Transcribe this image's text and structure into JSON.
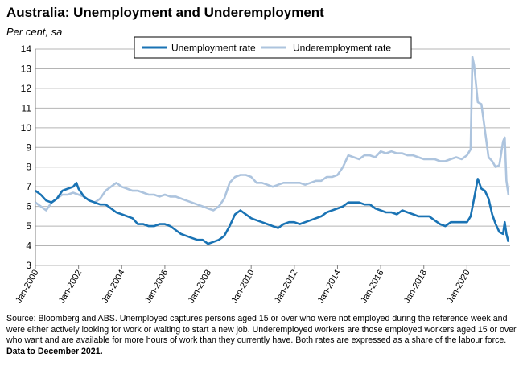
{
  "chart_data": {
    "type": "line",
    "title": "Australia: Unemployment and Underemployment",
    "subtitle": "Per cent, sa",
    "ylim": [
      3,
      14
    ],
    "yticks": [
      "3",
      "4",
      "5",
      "6",
      "7",
      "8",
      "9",
      "10",
      "11",
      "12",
      "13",
      "14"
    ],
    "xlim": [
      2000.0,
      2022.0
    ],
    "xticks": [
      {
        "label": "Jan-2000",
        "x": 2000
      },
      {
        "label": "Jan-2002",
        "x": 2002
      },
      {
        "label": "Jan-2004",
        "x": 2004
      },
      {
        "label": "Jan-2006",
        "x": 2006
      },
      {
        "label": "Jan-2008",
        "x": 2008
      },
      {
        "label": "Jan-2010",
        "x": 2010
      },
      {
        "label": "Jan-2012",
        "x": 2012
      },
      {
        "label": "Jan-2014",
        "x": 2014
      },
      {
        "label": "Jan-2016",
        "x": 2016
      },
      {
        "label": "Jan-2018",
        "x": 2018
      },
      {
        "label": "Jan-2020",
        "x": 2020
      }
    ],
    "grid": true,
    "legend_position": "top-center",
    "series": [
      {
        "name": "Unemployment rate",
        "color": "#1a73b4",
        "points": [
          [
            2000.0,
            6.8
          ],
          [
            2000.25,
            6.6
          ],
          [
            2000.5,
            6.3
          ],
          [
            2000.75,
            6.2
          ],
          [
            2001.0,
            6.4
          ],
          [
            2001.25,
            6.8
          ],
          [
            2001.5,
            6.9
          ],
          [
            2001.75,
            7.0
          ],
          [
            2001.9,
            7.2
          ],
          [
            2002.0,
            6.9
          ],
          [
            2002.25,
            6.5
          ],
          [
            2002.5,
            6.3
          ],
          [
            2002.75,
            6.2
          ],
          [
            2003.0,
            6.1
          ],
          [
            2003.25,
            6.1
          ],
          [
            2003.5,
            5.9
          ],
          [
            2003.75,
            5.7
          ],
          [
            2004.0,
            5.6
          ],
          [
            2004.25,
            5.5
          ],
          [
            2004.5,
            5.4
          ],
          [
            2004.75,
            5.1
          ],
          [
            2005.0,
            5.1
          ],
          [
            2005.25,
            5.0
          ],
          [
            2005.5,
            5.0
          ],
          [
            2005.75,
            5.1
          ],
          [
            2006.0,
            5.1
          ],
          [
            2006.25,
            5.0
          ],
          [
            2006.5,
            4.8
          ],
          [
            2006.75,
            4.6
          ],
          [
            2007.0,
            4.5
          ],
          [
            2007.25,
            4.4
          ],
          [
            2007.5,
            4.3
          ],
          [
            2007.75,
            4.3
          ],
          [
            2008.0,
            4.1
          ],
          [
            2008.25,
            4.2
          ],
          [
            2008.5,
            4.3
          ],
          [
            2008.75,
            4.5
          ],
          [
            2009.0,
            5.0
          ],
          [
            2009.25,
            5.6
          ],
          [
            2009.5,
            5.8
          ],
          [
            2009.75,
            5.6
          ],
          [
            2010.0,
            5.4
          ],
          [
            2010.25,
            5.3
          ],
          [
            2010.5,
            5.2
          ],
          [
            2010.75,
            5.1
          ],
          [
            2011.0,
            5.0
          ],
          [
            2011.25,
            4.9
          ],
          [
            2011.5,
            5.1
          ],
          [
            2011.75,
            5.2
          ],
          [
            2012.0,
            5.2
          ],
          [
            2012.25,
            5.1
          ],
          [
            2012.5,
            5.2
          ],
          [
            2012.75,
            5.3
          ],
          [
            2013.0,
            5.4
          ],
          [
            2013.25,
            5.5
          ],
          [
            2013.5,
            5.7
          ],
          [
            2013.75,
            5.8
          ],
          [
            2014.0,
            5.9
          ],
          [
            2014.25,
            6.0
          ],
          [
            2014.5,
            6.2
          ],
          [
            2014.75,
            6.2
          ],
          [
            2015.0,
            6.2
          ],
          [
            2015.25,
            6.1
          ],
          [
            2015.5,
            6.1
          ],
          [
            2015.75,
            5.9
          ],
          [
            2016.0,
            5.8
          ],
          [
            2016.25,
            5.7
          ],
          [
            2016.5,
            5.7
          ],
          [
            2016.75,
            5.6
          ],
          [
            2017.0,
            5.8
          ],
          [
            2017.25,
            5.7
          ],
          [
            2017.5,
            5.6
          ],
          [
            2017.75,
            5.5
          ],
          [
            2018.0,
            5.5
          ],
          [
            2018.25,
            5.5
          ],
          [
            2018.5,
            5.3
          ],
          [
            2018.75,
            5.1
          ],
          [
            2019.0,
            5.0
          ],
          [
            2019.25,
            5.2
          ],
          [
            2019.5,
            5.2
          ],
          [
            2019.75,
            5.2
          ],
          [
            2020.0,
            5.2
          ],
          [
            2020.17,
            5.5
          ],
          [
            2020.33,
            6.4
          ],
          [
            2020.5,
            7.4
          ],
          [
            2020.67,
            6.9
          ],
          [
            2020.83,
            6.8
          ],
          [
            2021.0,
            6.4
          ],
          [
            2021.17,
            5.6
          ],
          [
            2021.33,
            5.1
          ],
          [
            2021.5,
            4.7
          ],
          [
            2021.67,
            4.6
          ],
          [
            2021.75,
            5.2
          ],
          [
            2021.83,
            4.6
          ],
          [
            2021.92,
            4.2
          ]
        ]
      },
      {
        "name": "Underemployment rate",
        "color": "#adc4de",
        "points": [
          [
            2000.0,
            6.2
          ],
          [
            2000.25,
            6.0
          ],
          [
            2000.5,
            5.8
          ],
          [
            2000.75,
            6.2
          ],
          [
            2001.0,
            6.4
          ],
          [
            2001.25,
            6.6
          ],
          [
            2001.5,
            6.6
          ],
          [
            2001.75,
            6.7
          ],
          [
            2002.0,
            6.6
          ],
          [
            2002.25,
            6.5
          ],
          [
            2002.5,
            6.3
          ],
          [
            2002.75,
            6.2
          ],
          [
            2003.0,
            6.4
          ],
          [
            2003.25,
            6.8
          ],
          [
            2003.5,
            7.0
          ],
          [
            2003.75,
            7.2
          ],
          [
            2004.0,
            7.0
          ],
          [
            2004.25,
            6.9
          ],
          [
            2004.5,
            6.8
          ],
          [
            2004.75,
            6.8
          ],
          [
            2005.0,
            6.7
          ],
          [
            2005.25,
            6.6
          ],
          [
            2005.5,
            6.6
          ],
          [
            2005.75,
            6.5
          ],
          [
            2006.0,
            6.6
          ],
          [
            2006.25,
            6.5
          ],
          [
            2006.5,
            6.5
          ],
          [
            2006.75,
            6.4
          ],
          [
            2007.0,
            6.3
          ],
          [
            2007.25,
            6.2
          ],
          [
            2007.5,
            6.1
          ],
          [
            2007.75,
            6.0
          ],
          [
            2008.0,
            5.9
          ],
          [
            2008.25,
            5.8
          ],
          [
            2008.5,
            6.0
          ],
          [
            2008.75,
            6.4
          ],
          [
            2009.0,
            7.2
          ],
          [
            2009.25,
            7.5
          ],
          [
            2009.5,
            7.6
          ],
          [
            2009.75,
            7.6
          ],
          [
            2010.0,
            7.5
          ],
          [
            2010.25,
            7.2
          ],
          [
            2010.5,
            7.2
          ],
          [
            2010.75,
            7.1
          ],
          [
            2011.0,
            7.0
          ],
          [
            2011.25,
            7.1
          ],
          [
            2011.5,
            7.2
          ],
          [
            2011.75,
            7.2
          ],
          [
            2012.0,
            7.2
          ],
          [
            2012.25,
            7.2
          ],
          [
            2012.5,
            7.1
          ],
          [
            2012.75,
            7.2
          ],
          [
            2013.0,
            7.3
          ],
          [
            2013.25,
            7.3
          ],
          [
            2013.5,
            7.5
          ],
          [
            2013.75,
            7.5
          ],
          [
            2014.0,
            7.6
          ],
          [
            2014.25,
            8.0
          ],
          [
            2014.5,
            8.6
          ],
          [
            2014.75,
            8.5
          ],
          [
            2015.0,
            8.4
          ],
          [
            2015.25,
            8.6
          ],
          [
            2015.5,
            8.6
          ],
          [
            2015.75,
            8.5
          ],
          [
            2016.0,
            8.8
          ],
          [
            2016.25,
            8.7
          ],
          [
            2016.5,
            8.8
          ],
          [
            2016.75,
            8.7
          ],
          [
            2017.0,
            8.7
          ],
          [
            2017.25,
            8.6
          ],
          [
            2017.5,
            8.6
          ],
          [
            2017.75,
            8.5
          ],
          [
            2018.0,
            8.4
          ],
          [
            2018.25,
            8.4
          ],
          [
            2018.5,
            8.4
          ],
          [
            2018.75,
            8.3
          ],
          [
            2019.0,
            8.3
          ],
          [
            2019.25,
            8.4
          ],
          [
            2019.5,
            8.5
          ],
          [
            2019.75,
            8.4
          ],
          [
            2020.0,
            8.6
          ],
          [
            2020.17,
            8.9
          ],
          [
            2020.25,
            13.6
          ],
          [
            2020.33,
            13.2
          ],
          [
            2020.5,
            11.3
          ],
          [
            2020.67,
            11.2
          ],
          [
            2020.83,
            9.9
          ],
          [
            2021.0,
            8.5
          ],
          [
            2021.17,
            8.3
          ],
          [
            2021.33,
            8.0
          ],
          [
            2021.5,
            8.1
          ],
          [
            2021.67,
            9.3
          ],
          [
            2021.75,
            9.5
          ],
          [
            2021.83,
            7.3
          ],
          [
            2021.92,
            6.6
          ]
        ]
      }
    ]
  },
  "source_note": {
    "text": "Source: Bloomberg and ABS.  Unemployed captures persons aged 15 or over who were not employed during the reference week and were either actively looking for work or waiting to start a new job.  Underemployed workers are those employed workers aged 15 or over who want and are available for more hours of work than they currently have.  Both rates are expressed as a share of the labour force.",
    "bold": "Data to December 2021."
  }
}
